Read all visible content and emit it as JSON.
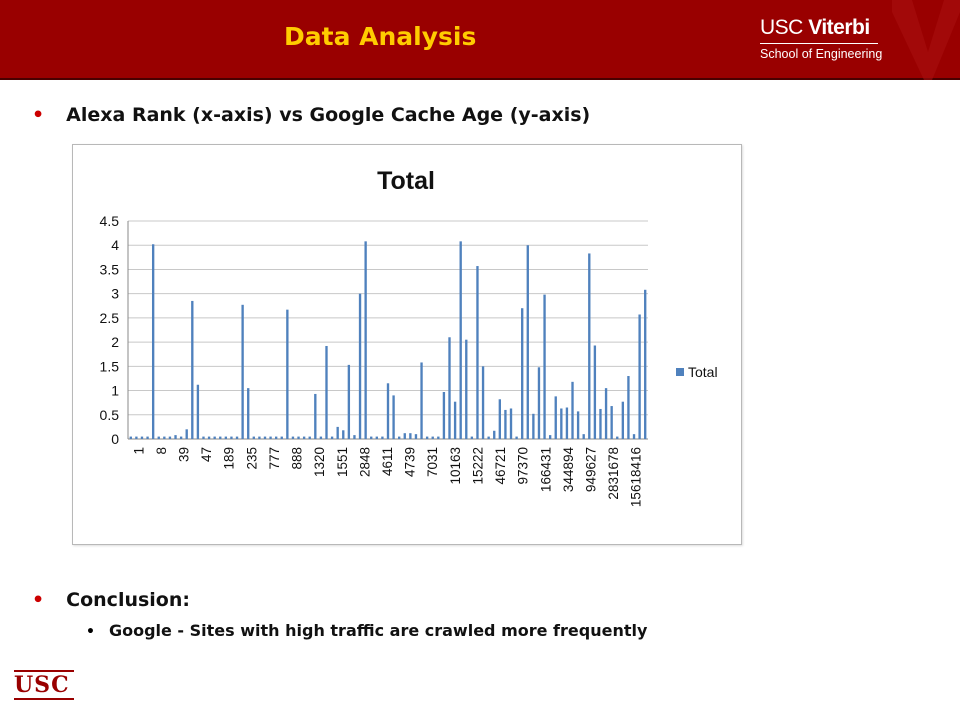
{
  "header": {
    "title": "Data Analysis"
  },
  "logo": {
    "brand_usc": "USC ",
    "brand_viterbi": "Viterbi",
    "school": "School of Engineering"
  },
  "bullets": {
    "main": "Alexa Rank (x-axis) vs Google Cache Age (y-axis)",
    "conclusion": "Conclusion:",
    "sub": "Google - Sites with high traffic are crawled more frequently"
  },
  "footer_logo": "USC",
  "colors": {
    "header_bg": "#990000",
    "header_title": "#ffcc00",
    "bar": "#4f81bd",
    "bullet": "#cc0000"
  },
  "chart_data": {
    "type": "bar",
    "title": "Total",
    "xlabel": "",
    "ylabel": "",
    "ylim": [
      0,
      4.5
    ],
    "yticks": [
      0,
      0.5,
      1,
      1.5,
      2,
      2.5,
      3,
      3.5,
      4,
      4.5
    ],
    "grid": true,
    "legend": "right",
    "tick_labels": [
      "1",
      "8",
      "39",
      "47",
      "189",
      "235",
      "777",
      "888",
      "1320",
      "1551",
      "2848",
      "4611",
      "4739",
      "7031",
      "10163",
      "15222",
      "46721",
      "97370",
      "166431",
      "344894",
      "949627",
      "2831678",
      "15618416"
    ],
    "series": [
      {
        "name": "Total",
        "values": [
          0.05,
          0.05,
          0.05,
          0.05,
          4.02,
          0.05,
          0.05,
          0.05,
          0.08,
          0.05,
          0.2,
          2.85,
          1.12,
          0.05,
          0.05,
          0.05,
          0.05,
          0.05,
          0.05,
          0.05,
          2.77,
          1.05,
          0.05,
          0.05,
          0.05,
          0.05,
          0.05,
          0.05,
          2.67,
          0.05,
          0.05,
          0.05,
          0.05,
          0.93,
          0.05,
          1.92,
          0.05,
          0.25,
          0.18,
          1.53,
          0.08,
          3.0,
          4.08,
          0.05,
          0.05,
          0.05,
          1.15,
          0.9,
          0.05,
          0.12,
          0.12,
          0.1,
          1.58,
          0.05,
          0.05,
          0.05,
          0.97,
          2.1,
          0.77,
          4.08,
          2.05,
          0.05,
          3.57,
          1.5,
          0.05,
          0.17,
          0.82,
          0.6,
          0.63,
          0.05,
          2.7,
          4.0,
          0.52,
          1.48,
          2.98,
          0.08,
          0.88,
          0.63,
          0.65,
          1.18,
          0.57,
          0.1,
          3.83,
          1.93,
          0.62,
          1.05,
          0.68,
          0.05,
          0.77,
          1.3,
          0.1,
          2.57,
          3.08
        ]
      }
    ]
  }
}
